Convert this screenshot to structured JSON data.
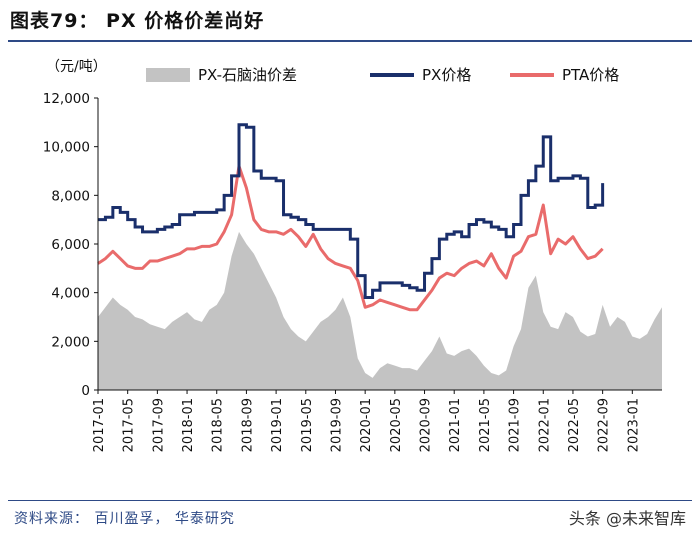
{
  "title": "图表79： PX 价格价差尚好",
  "unit_label": "（元/吨）",
  "source": "资料来源： 百川盈孚， 华泰研究",
  "watermark": "头条 @未来智库",
  "chart_data": {
    "type": "area+line",
    "ylim": [
      0,
      12000
    ],
    "yticks": [
      "0",
      "2,000",
      "4,000",
      "6,000",
      "8,000",
      "10,000",
      "12,000"
    ],
    "ytick_values": [
      0,
      2000,
      4000,
      6000,
      8000,
      10000,
      12000
    ],
    "xticks": [
      "2017-01",
      "2017-05",
      "2017-09",
      "2018-01",
      "2018-05",
      "2018-09",
      "2019-01",
      "2019-05",
      "2019-09",
      "2020-01",
      "2020-05",
      "2020-09",
      "2021-01",
      "2021-05",
      "2021-09",
      "2022-01",
      "2022-05",
      "2022-09",
      "2023-01"
    ],
    "x_range_months": [
      0,
      76
    ],
    "legend_position": "top",
    "colors": {
      "spread": "#c3c3c3",
      "px": "#1a2f6b",
      "pta": "#e96b6b"
    },
    "series": [
      {
        "name": "PX-石脑油价差",
        "type": "area",
        "points": [
          [
            0,
            3000
          ],
          [
            1,
            3400
          ],
          [
            2,
            3800
          ],
          [
            3,
            3500
          ],
          [
            4,
            3300
          ],
          [
            5,
            3000
          ],
          [
            6,
            2900
          ],
          [
            7,
            2700
          ],
          [
            8,
            2600
          ],
          [
            9,
            2500
          ],
          [
            10,
            2800
          ],
          [
            11,
            3000
          ],
          [
            12,
            3200
          ],
          [
            13,
            2900
          ],
          [
            14,
            2800
          ],
          [
            15,
            3300
          ],
          [
            16,
            3500
          ],
          [
            17,
            4000
          ],
          [
            18,
            5500
          ],
          [
            19,
            6500
          ],
          [
            20,
            6000
          ],
          [
            21,
            5600
          ],
          [
            22,
            5000
          ],
          [
            23,
            4400
          ],
          [
            24,
            3800
          ],
          [
            25,
            3000
          ],
          [
            26,
            2500
          ],
          [
            27,
            2200
          ],
          [
            28,
            2000
          ],
          [
            29,
            2400
          ],
          [
            30,
            2800
          ],
          [
            31,
            3000
          ],
          [
            32,
            3300
          ],
          [
            33,
            3800
          ],
          [
            34,
            3000
          ],
          [
            35,
            1300
          ],
          [
            36,
            700
          ],
          [
            37,
            500
          ],
          [
            38,
            900
          ],
          [
            39,
            1100
          ],
          [
            40,
            1000
          ],
          [
            41,
            900
          ],
          [
            42,
            900
          ],
          [
            43,
            800
          ],
          [
            44,
            1200
          ],
          [
            45,
            1600
          ],
          [
            46,
            2200
          ],
          [
            47,
            1500
          ],
          [
            48,
            1400
          ],
          [
            49,
            1600
          ],
          [
            50,
            1700
          ],
          [
            51,
            1400
          ],
          [
            52,
            1000
          ],
          [
            53,
            700
          ],
          [
            54,
            600
          ],
          [
            55,
            800
          ],
          [
            56,
            1800
          ],
          [
            57,
            2500
          ],
          [
            58,
            4200
          ],
          [
            59,
            4700
          ],
          [
            60,
            3200
          ],
          [
            61,
            2600
          ],
          [
            62,
            2500
          ],
          [
            63,
            3200
          ],
          [
            64,
            3000
          ],
          [
            65,
            2400
          ],
          [
            66,
            2200
          ],
          [
            67,
            2300
          ],
          [
            68,
            3500
          ],
          [
            69,
            2600
          ],
          [
            70,
            3000
          ],
          [
            71,
            2800
          ],
          [
            72,
            2200
          ],
          [
            73,
            2100
          ],
          [
            74,
            2300
          ],
          [
            75,
            2900
          ],
          [
            76,
            3400
          ]
        ]
      },
      {
        "name": "PX价格",
        "type": "line",
        "points": [
          [
            0,
            7000
          ],
          [
            1,
            7100
          ],
          [
            2,
            7500
          ],
          [
            3,
            7300
          ],
          [
            4,
            7000
          ],
          [
            5,
            6700
          ],
          [
            6,
            6500
          ],
          [
            7,
            6500
          ],
          [
            8,
            6600
          ],
          [
            9,
            6700
          ],
          [
            10,
            6800
          ],
          [
            11,
            7200
          ],
          [
            12,
            7200
          ],
          [
            13,
            7300
          ],
          [
            14,
            7300
          ],
          [
            15,
            7300
          ],
          [
            16,
            7400
          ],
          [
            17,
            8000
          ],
          [
            18,
            8800
          ],
          [
            19,
            10900
          ],
          [
            20,
            10800
          ],
          [
            21,
            9000
          ],
          [
            22,
            8700
          ],
          [
            23,
            8700
          ],
          [
            24,
            8600
          ],
          [
            25,
            7200
          ],
          [
            26,
            7100
          ],
          [
            27,
            7000
          ],
          [
            28,
            6800
          ],
          [
            29,
            6600
          ],
          [
            30,
            6600
          ],
          [
            31,
            6600
          ],
          [
            32,
            6600
          ],
          [
            33,
            6600
          ],
          [
            34,
            6200
          ],
          [
            35,
            4700
          ],
          [
            36,
            3800
          ],
          [
            37,
            4100
          ],
          [
            38,
            4400
          ],
          [
            39,
            4400
          ],
          [
            40,
            4400
          ],
          [
            41,
            4300
          ],
          [
            42,
            4200
          ],
          [
            43,
            4100
          ],
          [
            44,
            4800
          ],
          [
            45,
            5400
          ],
          [
            46,
            6200
          ],
          [
            47,
            6400
          ],
          [
            48,
            6500
          ],
          [
            49,
            6300
          ],
          [
            50,
            6800
          ],
          [
            51,
            7000
          ],
          [
            52,
            6900
          ],
          [
            53,
            6700
          ],
          [
            54,
            6600
          ],
          [
            55,
            6300
          ],
          [
            56,
            6800
          ],
          [
            57,
            8000
          ],
          [
            58,
            8600
          ],
          [
            59,
            9200
          ],
          [
            60,
            10400
          ],
          [
            61,
            8600
          ],
          [
            62,
            8700
          ],
          [
            63,
            8700
          ],
          [
            64,
            8800
          ],
          [
            65,
            8700
          ],
          [
            66,
            7500
          ],
          [
            67,
            7600
          ],
          [
            68,
            8500
          ]
        ]
      },
      {
        "name": "PTA价格",
        "type": "line",
        "points": [
          [
            0,
            5200
          ],
          [
            1,
            5400
          ],
          [
            2,
            5700
          ],
          [
            3,
            5400
          ],
          [
            4,
            5100
          ],
          [
            5,
            5000
          ],
          [
            6,
            5000
          ],
          [
            7,
            5300
          ],
          [
            8,
            5300
          ],
          [
            9,
            5400
          ],
          [
            10,
            5500
          ],
          [
            11,
            5600
          ],
          [
            12,
            5800
          ],
          [
            13,
            5800
          ],
          [
            14,
            5900
          ],
          [
            15,
            5900
          ],
          [
            16,
            6000
          ],
          [
            17,
            6500
          ],
          [
            18,
            7200
          ],
          [
            19,
            9200
          ],
          [
            20,
            8300
          ],
          [
            21,
            7000
          ],
          [
            22,
            6600
          ],
          [
            23,
            6500
          ],
          [
            24,
            6500
          ],
          [
            25,
            6400
          ],
          [
            26,
            6600
          ],
          [
            27,
            6300
          ],
          [
            28,
            5900
          ],
          [
            29,
            6400
          ],
          [
            30,
            5800
          ],
          [
            31,
            5400
          ],
          [
            32,
            5200
          ],
          [
            33,
            5100
          ],
          [
            34,
            5000
          ],
          [
            35,
            4500
          ],
          [
            36,
            3400
          ],
          [
            37,
            3500
          ],
          [
            38,
            3700
          ],
          [
            39,
            3600
          ],
          [
            40,
            3500
          ],
          [
            41,
            3400
          ],
          [
            42,
            3300
          ],
          [
            43,
            3300
          ],
          [
            44,
            3700
          ],
          [
            45,
            4100
          ],
          [
            46,
            4600
          ],
          [
            47,
            4800
          ],
          [
            48,
            4700
          ],
          [
            49,
            5000
          ],
          [
            50,
            5200
          ],
          [
            51,
            5300
          ],
          [
            52,
            5100
          ],
          [
            53,
            5600
          ],
          [
            54,
            5000
          ],
          [
            55,
            4600
          ],
          [
            56,
            5500
          ],
          [
            57,
            5700
          ],
          [
            58,
            6300
          ],
          [
            59,
            6400
          ],
          [
            60,
            7600
          ],
          [
            61,
            5600
          ],
          [
            62,
            6200
          ],
          [
            63,
            6000
          ],
          [
            64,
            6300
          ],
          [
            65,
            5800
          ],
          [
            66,
            5400
          ],
          [
            67,
            5500
          ],
          [
            68,
            5800
          ]
        ]
      }
    ]
  }
}
